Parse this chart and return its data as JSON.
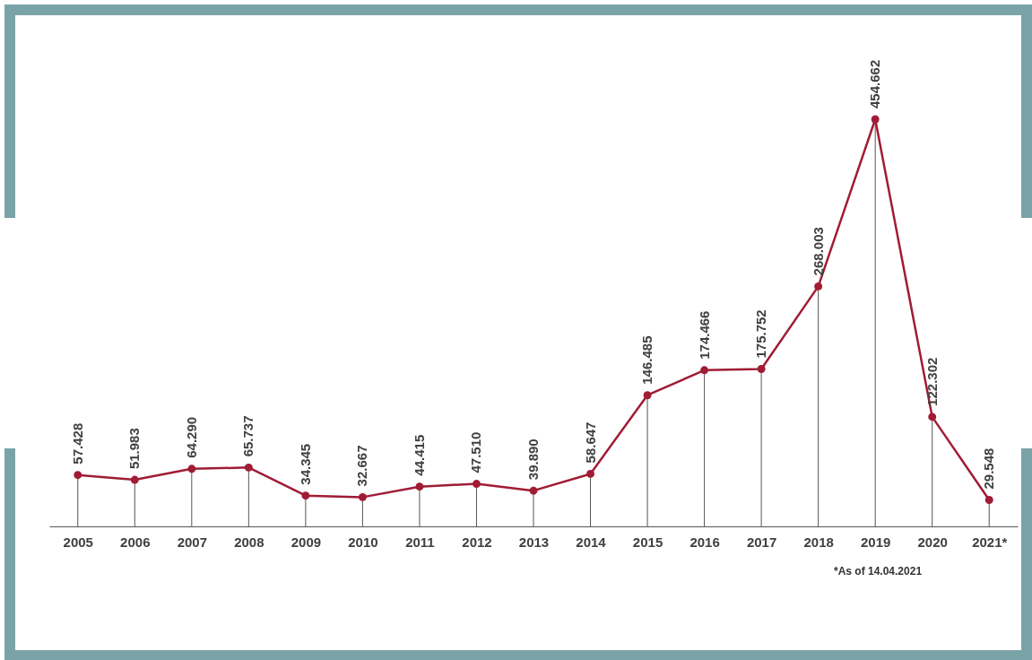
{
  "chart_data": {
    "type": "line",
    "categories": [
      "2005",
      "2006",
      "2007",
      "2008",
      "2009",
      "2010",
      "2011",
      "2012",
      "2013",
      "2014",
      "2015",
      "2016",
      "2017",
      "2018",
      "2019",
      "2020",
      "2021*"
    ],
    "values": [
      57428,
      51983,
      64290,
      65737,
      34345,
      32667,
      44415,
      47510,
      39890,
      58647,
      146485,
      174466,
      175752,
      268003,
      454662,
      122302,
      29548
    ],
    "value_labels": [
      "57.428",
      "51.983",
      "64.290",
      "65.737",
      "34.345",
      "32.667",
      "44.415",
      "47.510",
      "39.890",
      "58.647",
      "146.485",
      "174.466",
      "175.752",
      "268.003",
      "454.662",
      "122.302",
      "29.548"
    ],
    "color": "#a01c35",
    "marker": "circle",
    "line_style": "solid",
    "annotations": [
      "*As of 14.04.2021"
    ]
  }
}
